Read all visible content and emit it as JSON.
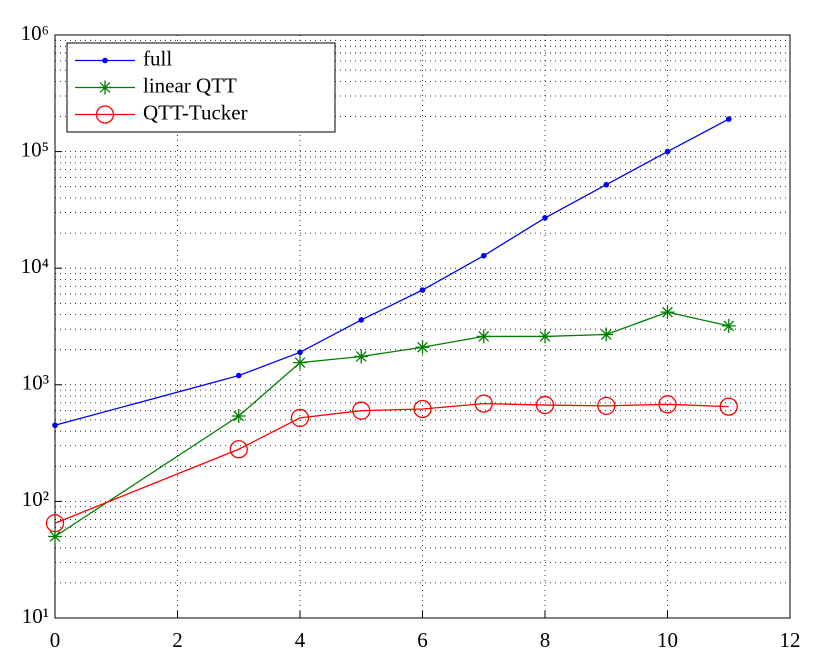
{
  "chart_data": {
    "type": "line",
    "log_y": true,
    "grid": true,
    "legend": "upper left",
    "xlim": [
      0,
      12
    ],
    "xticks": [
      0,
      2,
      4,
      6,
      8,
      10,
      12
    ],
    "ylim": [
      10,
      1000000
    ],
    "yticks": [
      {
        "value": 10,
        "label": "10¹"
      },
      {
        "value": 100,
        "label": "10²"
      },
      {
        "value": 1000,
        "label": "10³"
      },
      {
        "value": 10000,
        "label": "10⁴"
      },
      {
        "value": 100000,
        "label": "10⁵"
      },
      {
        "value": 1000000,
        "label": "10⁶"
      }
    ],
    "series": [
      {
        "name": "full",
        "color": "#0000ff",
        "marker": "dot",
        "x": [
          0,
          3,
          4,
          5,
          6,
          7,
          8,
          9,
          10,
          11
        ],
        "values": [
          450,
          1200,
          1900,
          3600,
          6500,
          12800,
          27000,
          52000,
          100000,
          190000
        ]
      },
      {
        "name": "linear QTT",
        "color": "#008000",
        "marker": "star",
        "x": [
          0,
          3,
          4,
          5,
          6,
          7,
          8,
          9,
          10,
          11
        ],
        "values": [
          50,
          540,
          1550,
          1750,
          2100,
          2600,
          2600,
          2700,
          4200,
          3200
        ]
      },
      {
        "name": "QTT-Tucker",
        "color": "#ff0000",
        "marker": "circle",
        "x": [
          0,
          3,
          4,
          5,
          6,
          7,
          8,
          9,
          10,
          11
        ],
        "values": [
          65,
          280,
          520,
          600,
          620,
          690,
          670,
          660,
          680,
          650
        ]
      }
    ]
  }
}
